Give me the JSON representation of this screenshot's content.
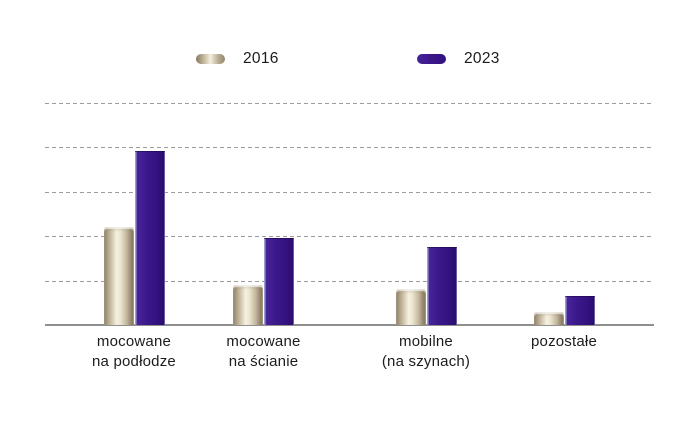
{
  "legend": {
    "items": [
      {
        "label": "2016"
      },
      {
        "label": "2023"
      }
    ]
  },
  "chart_data": {
    "type": "bar",
    "categories": [
      [
        "mocowane",
        "na podłodze"
      ],
      [
        "mocowane",
        "na ścianie"
      ],
      [
        "mobilne",
        "(na szynach)"
      ],
      [
        "pozostałe"
      ]
    ],
    "series": [
      {
        "name": "2016",
        "color": "#d9cfb6",
        "gradient": [
          "#8f8168",
          "#f6f1e1",
          "#8a7c63"
        ],
        "values": [
          22,
          9,
          8,
          3
        ]
      },
      {
        "name": "2023",
        "color": "#3b188a",
        "gradient": [
          "#482499",
          "#3b188a",
          "#2c0d6d"
        ],
        "values": [
          39,
          19.5,
          17.5,
          6.5
        ]
      }
    ],
    "title": "",
    "xlabel": "",
    "ylabel": "",
    "ylim": [
      0,
      50
    ],
    "gridlines": {
      "values": [
        10,
        20,
        30,
        40,
        50
      ],
      "style": "dashed",
      "color": "#9c9c9c"
    },
    "axis_color": "#8f8f8f",
    "legend_position": "top-center",
    "note": "y-axis has no visible tick labels; values estimated with one gridline interval = 10"
  }
}
